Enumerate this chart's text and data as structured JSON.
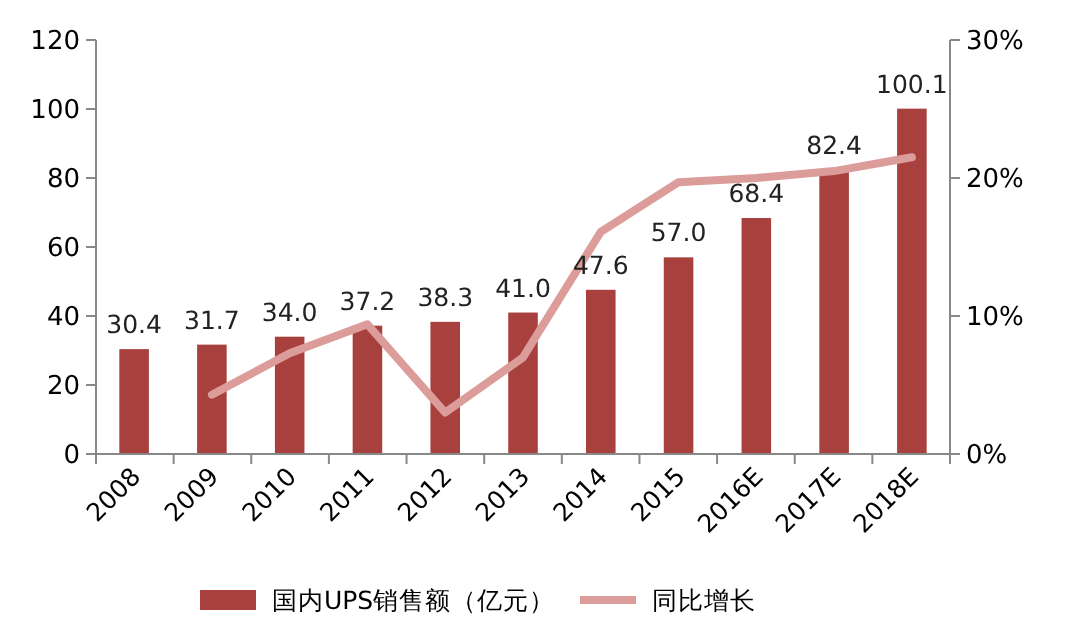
{
  "chart_data": {
    "type": "bar",
    "categories": [
      "2008",
      "2009",
      "2010",
      "2011",
      "2012",
      "2013",
      "2014",
      "2015",
      "2016E",
      "2017E",
      "2018E"
    ],
    "series": [
      {
        "name": "国内UPS销售额（亿元）",
        "color": "#a8403e",
        "values": [
          30.4,
          31.7,
          34.0,
          37.2,
          38.3,
          41.0,
          47.6,
          57.0,
          68.4,
          82.4,
          100.1
        ],
        "value_labels": [
          "30.4",
          "31.7",
          "34.0",
          "37.2",
          "38.3",
          "41.0",
          "47.6",
          "57.0",
          "68.4",
          "82.4",
          "100.1"
        ]
      },
      {
        "name": "同比增长",
        "type": "line",
        "axis": "y2",
        "color": "#dc9c9a",
        "values": [
          null,
          4.3,
          7.3,
          9.4,
          3.0,
          7.0,
          16.1,
          19.7,
          20.0,
          20.5,
          21.5
        ]
      }
    ],
    "ylim": [
      0,
      120
    ],
    "yticks": [
      0,
      20,
      40,
      60,
      80,
      100,
      120
    ],
    "y2lim": [
      0,
      30
    ],
    "y2ticks": [
      {
        "value": 0,
        "label": "0%"
      },
      {
        "value": 10,
        "label": "10%"
      },
      {
        "value": 20,
        "label": "20%"
      },
      {
        "value": 30,
        "label": "30%"
      }
    ],
    "legend": "bottom",
    "grid": false,
    "marker": "none",
    "line_style": "solid"
  }
}
